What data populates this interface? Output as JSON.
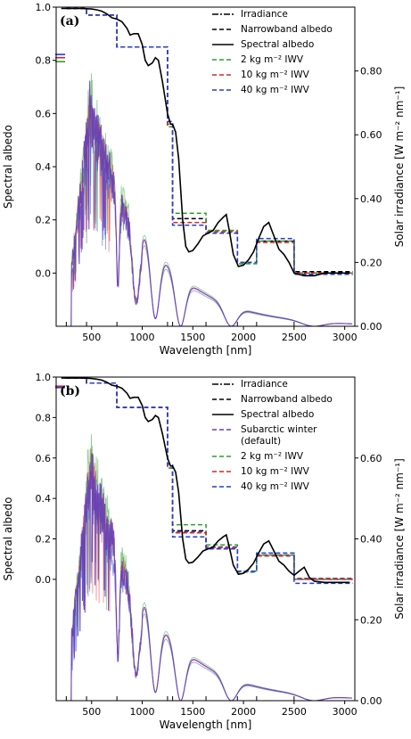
{
  "chart_data": [
    {
      "type": "line",
      "panel_label": "(a)",
      "xlabel": "Wavelength [nm]",
      "ylabel": "Spectral albedo",
      "y2label": "Solar irradiance [W m⁻² nm⁻¹]",
      "xlim": [
        150,
        3100
      ],
      "ylim": [
        -0.2,
        1.0
      ],
      "y2lim": [
        0.0,
        1.0
      ],
      "xticks": [
        "500",
        "1000",
        "1500",
        "2000",
        "2500",
        "3000"
      ],
      "yticks": [
        "0.0",
        "0.2",
        "0.4",
        "0.6",
        "0.8",
        "1.0"
      ],
      "y2ticks": [
        "0.00",
        "0.20",
        "0.40",
        "0.60",
        "0.80"
      ],
      "grid": false,
      "legend_position": "top-right",
      "legend": [
        {
          "label": "Irradiance",
          "style": "dashdot",
          "color": "#000000"
        },
        {
          "label": "Narrowband albedo",
          "style": "dashed",
          "color": "#000000"
        },
        {
          "label": "Spectral albedo",
          "style": "solid",
          "color": "#000000"
        },
        {
          "label": "2 kg m⁻² IWV",
          "style": "dashed",
          "color": "#2ca02c"
        },
        {
          "label": "10 kg m⁻² IWV",
          "style": "dashed",
          "color": "#d62728"
        },
        {
          "label": "40 kg m⁻² IWV",
          "style": "dashed",
          "color": "#1f3fd6"
        }
      ],
      "spectral_albedo": {
        "x": [
          200,
          300,
          400,
          500,
          550,
          600,
          650,
          700,
          750,
          800,
          850,
          880,
          920,
          960,
          1000,
          1030,
          1060,
          1100,
          1130,
          1160,
          1200,
          1250,
          1280,
          1300,
          1330,
          1360,
          1400,
          1430,
          1460,
          1500,
          1550,
          1600,
          1650,
          1700,
          1750,
          1800,
          1830,
          1860,
          1900,
          1950,
          2000,
          2050,
          2100,
          2150,
          2200,
          2250,
          2300,
          2350,
          2400,
          2450,
          2500,
          2600,
          2700,
          2800,
          2900,
          3000,
          3050
        ],
        "y": [
          0.995,
          0.995,
          0.995,
          0.993,
          0.99,
          0.985,
          0.975,
          0.96,
          0.955,
          0.945,
          0.92,
          0.895,
          0.9,
          0.9,
          0.86,
          0.8,
          0.78,
          0.79,
          0.81,
          0.8,
          0.72,
          0.6,
          0.56,
          0.56,
          0.53,
          0.43,
          0.2,
          0.1,
          0.08,
          0.085,
          0.11,
          0.14,
          0.15,
          0.16,
          0.19,
          0.21,
          0.22,
          0.16,
          0.07,
          0.025,
          0.03,
          0.05,
          0.08,
          0.13,
          0.175,
          0.19,
          0.14,
          0.09,
          0.07,
          0.04,
          0.0,
          -0.01,
          -0.01,
          0.0,
          0.0,
          0.0,
          0.0
        ]
      },
      "narrowband_bands": [
        [
          250,
          450
        ],
        [
          450,
          750
        ],
        [
          750,
          1250
        ],
        [
          1250,
          1300
        ],
        [
          1300,
          1630
        ],
        [
          1630,
          1940
        ],
        [
          1940,
          2130
        ],
        [
          2130,
          2500
        ],
        [
          2500,
          3080
        ]
      ],
      "series": [
        {
          "name": "Narrowband albedo",
          "values": [
            0.995,
            0.97,
            0.85,
            0.55,
            0.205,
            0.16,
            0.04,
            0.12,
            0.005
          ]
        },
        {
          "name": "2 kg m⁻² IWV",
          "values": [
            0.995,
            0.97,
            0.85,
            0.55,
            0.225,
            0.16,
            0.035,
            0.12,
            0.0
          ]
        },
        {
          "name": "10 kg m⁻² IWV",
          "values": [
            0.995,
            0.97,
            0.85,
            0.56,
            0.19,
            0.155,
            0.04,
            0.115,
            0.0
          ]
        },
        {
          "name": "40 kg m⁻² IWV",
          "values": [
            0.995,
            0.97,
            0.85,
            0.57,
            0.18,
            0.15,
            0.04,
            0.13,
            -0.005
          ]
        }
      ],
      "broadband_markers": [
        {
          "color": "#1f3fd6",
          "value": 0.822
        },
        {
          "color": "#d62728",
          "value": 0.81
        },
        {
          "color": "#2ca02c",
          "value": 0.795
        }
      ]
    },
    {
      "type": "line",
      "panel_label": "(b)",
      "xlabel": "Wavelength [nm]",
      "ylabel": "Spectral albedo",
      "y2label": "Solar irradiance [W m⁻² nm⁻¹]",
      "xlim": [
        150,
        3100
      ],
      "ylim": [
        -0.6,
        1.0
      ],
      "y2lim": [
        0.0,
        0.8
      ],
      "xticks": [
        "500",
        "1000",
        "1500",
        "2000",
        "2500",
        "3000"
      ],
      "yticks": [
        "0.0",
        "0.2",
        "0.4",
        "0.6",
        "0.8",
        "1.0"
      ],
      "y2ticks": [
        "0.00",
        "0.20",
        "0.40",
        "0.60"
      ],
      "grid": false,
      "legend_position": "top-right",
      "legend": [
        {
          "label": "Irradiance",
          "style": "dashdot",
          "color": "#000000"
        },
        {
          "label": "Narrowband albedo",
          "style": "dashed",
          "color": "#000000"
        },
        {
          "label": "Spectral albedo",
          "style": "solid",
          "color": "#000000"
        },
        {
          "label": "Subarctic winter",
          "label2": "(default)",
          "style": "dashed",
          "color": "#6a3fb5"
        },
        {
          "label": "2 kg m⁻² IWV",
          "style": "dashed",
          "color": "#2ca02c"
        },
        {
          "label": "10 kg m⁻² IWV",
          "style": "dashed",
          "color": "#d62728"
        },
        {
          "label": "40 kg m⁻² IWV",
          "style": "dashed",
          "color": "#1f3fd6"
        }
      ],
      "spectral_albedo": {
        "x": [
          200,
          300,
          400,
          500,
          550,
          600,
          650,
          700,
          750,
          800,
          850,
          880,
          920,
          960,
          1000,
          1030,
          1060,
          1100,
          1130,
          1160,
          1200,
          1250,
          1280,
          1300,
          1330,
          1360,
          1400,
          1430,
          1460,
          1500,
          1550,
          1600,
          1650,
          1700,
          1750,
          1800,
          1830,
          1860,
          1900,
          1950,
          2000,
          2050,
          2100,
          2150,
          2200,
          2250,
          2300,
          2350,
          2400,
          2450,
          2500,
          2550,
          2600,
          2650,
          2700,
          2800,
          2900,
          3000,
          3050
        ],
        "y": [
          0.995,
          0.995,
          0.995,
          0.993,
          0.99,
          0.985,
          0.975,
          0.96,
          0.955,
          0.945,
          0.92,
          0.895,
          0.9,
          0.9,
          0.86,
          0.8,
          0.78,
          0.79,
          0.81,
          0.8,
          0.72,
          0.6,
          0.56,
          0.56,
          0.53,
          0.43,
          0.2,
          0.1,
          0.08,
          0.085,
          0.11,
          0.14,
          0.15,
          0.16,
          0.19,
          0.21,
          0.22,
          0.16,
          0.07,
          0.025,
          0.03,
          0.05,
          0.08,
          0.13,
          0.175,
          0.19,
          0.14,
          0.09,
          0.07,
          0.04,
          0.02,
          0.04,
          0.06,
          0.01,
          -0.01,
          -0.015,
          -0.015,
          -0.015,
          -0.015
        ]
      },
      "narrowband_bands": [
        [
          250,
          450
        ],
        [
          450,
          750
        ],
        [
          750,
          1250
        ],
        [
          1250,
          1300
        ],
        [
          1300,
          1630
        ],
        [
          1630,
          1940
        ],
        [
          1940,
          2130
        ],
        [
          2130,
          2500
        ],
        [
          2500,
          3080
        ]
      ],
      "series": [
        {
          "name": "Narrowband albedo",
          "values": [
            0.995,
            0.97,
            0.85,
            0.55,
            0.24,
            0.16,
            0.04,
            0.12,
            0.005
          ]
        },
        {
          "name": "Subarctic winter (default)",
          "values": [
            0.995,
            0.97,
            0.85,
            0.55,
            0.235,
            0.16,
            0.04,
            0.12,
            0.005
          ]
        },
        {
          "name": "2 kg m⁻² IWV",
          "values": [
            0.995,
            0.97,
            0.85,
            0.55,
            0.27,
            0.17,
            0.035,
            0.12,
            0.0
          ]
        },
        {
          "name": "10 kg m⁻² IWV",
          "values": [
            0.995,
            0.97,
            0.85,
            0.56,
            0.23,
            0.155,
            0.04,
            0.115,
            0.0
          ]
        },
        {
          "name": "40 kg m⁻² IWV",
          "values": [
            0.995,
            0.97,
            0.85,
            0.57,
            0.21,
            0.15,
            0.04,
            0.13,
            -0.02
          ]
        }
      ],
      "broadband_markers": [
        {
          "color": "#d62728",
          "value": 0.955
        },
        {
          "color": "#1f3fd6",
          "value": 0.948
        }
      ]
    }
  ]
}
